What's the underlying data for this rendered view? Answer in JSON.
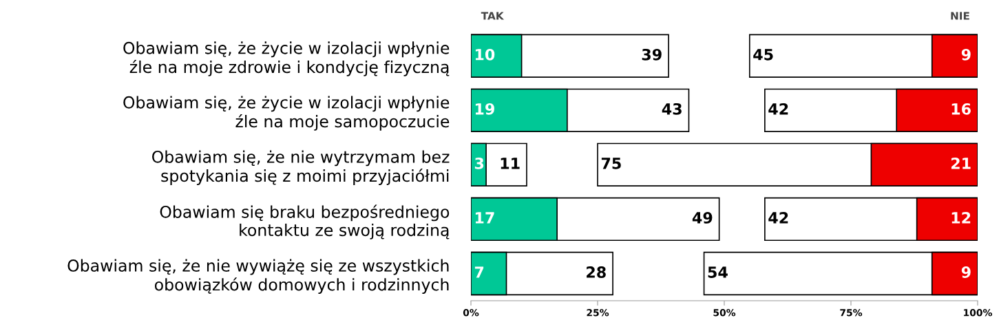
{
  "chart_data": {
    "type": "bar",
    "orientation": "horizontal",
    "categories": [
      "Obawiam się, że życie w izolacji wpłynie\nźle na moje zdrowie i kondycję fizyczną",
      "Obawiam się, że życie w izolacji wpłynie\nźle na moje samopoczucie",
      "Obawiam się, że nie wytrzymam bez\nspotykania się z moimi przyjaciółmi",
      "Obawiam się braku bezpośredniego\nkontaktu ze swoją rodziną",
      "Obawiam się, że nie wywiążę się ze wszystkich\nobowiązków domowych i rodzinnych"
    ],
    "series": [
      {
        "color": "#ffffff",
        "values": [
          39,
          43,
          11,
          49,
          28
        ],
        "base": [
          0,
          0,
          0,
          0,
          0
        ]
      },
      {
        "color": "#00c896",
        "values": [
          10,
          19,
          3,
          17,
          7
        ],
        "base": [
          0,
          0,
          0,
          0,
          0
        ]
      },
      {
        "color": "#ffffff",
        "values": [
          45,
          42,
          75,
          42,
          54
        ],
        "base": [
          55,
          58,
          25,
          58,
          46
        ]
      },
      {
        "color": "#ee0000",
        "values": [
          9,
          16,
          21,
          12,
          9
        ],
        "base": [
          91,
          84,
          79,
          88,
          91
        ]
      }
    ],
    "data_labels": true,
    "xlim": [
      0,
      100
    ],
    "xticks": [
      {
        "value": 0,
        "label": "0%"
      },
      {
        "value": 25,
        "label": "25%"
      },
      {
        "value": 50,
        "label": "50%"
      },
      {
        "value": 75,
        "label": "75%"
      },
      {
        "value": 100,
        "label": "100%"
      }
    ],
    "annotations": [
      "TAK",
      "NIE"
    ],
    "grid": false
  }
}
